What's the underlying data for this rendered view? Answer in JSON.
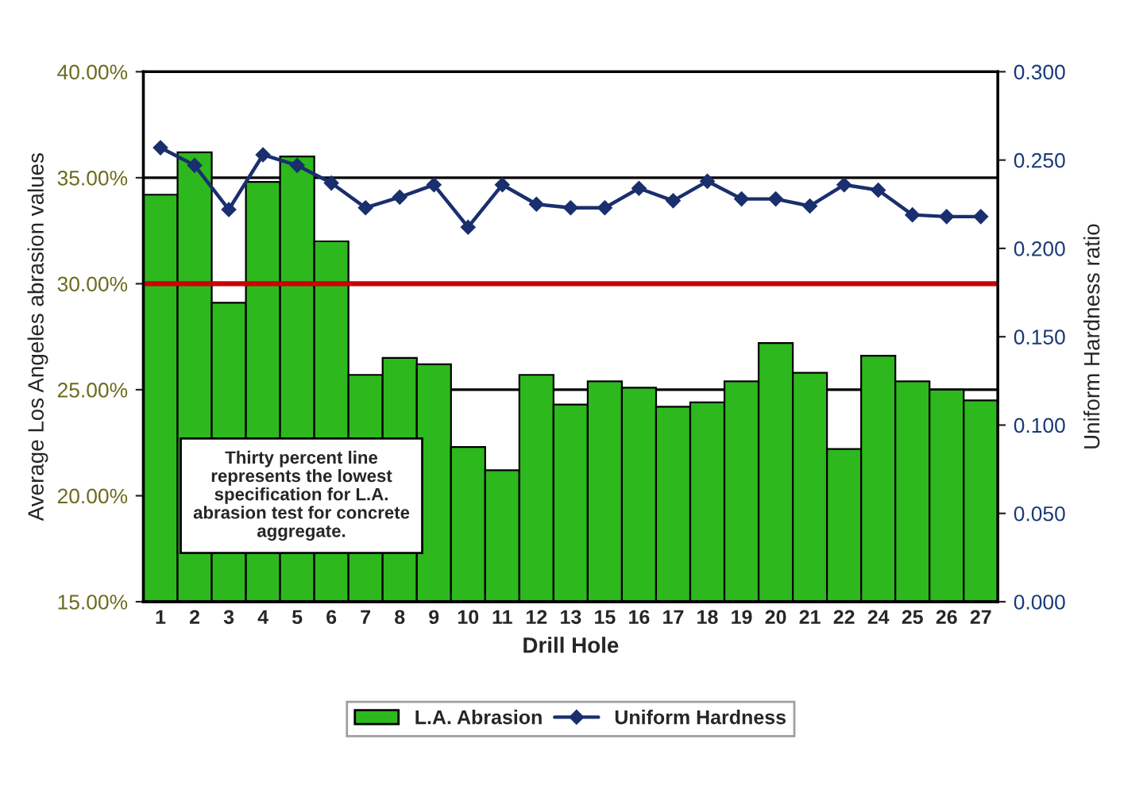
{
  "chart_data": {
    "type": "bar",
    "xlabel": "Drill Hole",
    "ylabel": "Average Los Angeles abrasion values",
    "y2label": "Uniform Hardness ratio",
    "categories": [
      "1",
      "2",
      "3",
      "4",
      "5",
      "6",
      "7",
      "8",
      "9",
      "10",
      "11",
      "12",
      "13",
      "15",
      "16",
      "17",
      "18",
      "19",
      "20",
      "21",
      "22",
      "24",
      "25",
      "26",
      "27"
    ],
    "series": [
      {
        "name": "L.A. Abrasion",
        "color": "#2db81e",
        "values": [
          34.2,
          36.2,
          29.1,
          34.8,
          36.0,
          32.0,
          25.7,
          26.5,
          26.2,
          22.3,
          21.2,
          25.7,
          24.3,
          25.4,
          25.1,
          24.2,
          24.4,
          25.4,
          27.2,
          25.8,
          22.2,
          26.6,
          25.4,
          25.0,
          24.5
        ]
      },
      {
        "name": "Uniform Hardness",
        "type": "line",
        "axis": "y2",
        "color": "#1a2f6e",
        "marker": "diamond",
        "values": [
          0.257,
          0.247,
          0.222,
          0.253,
          0.247,
          0.237,
          0.223,
          0.229,
          0.236,
          0.212,
          0.236,
          0.225,
          0.223,
          0.223,
          0.234,
          0.227,
          0.238,
          0.228,
          0.228,
          0.224,
          0.236,
          0.233,
          0.219,
          0.218,
          0.218
        ]
      }
    ],
    "ylim": [
      15,
      40
    ],
    "yticks": [
      {
        "value": 15,
        "label": "15.00%"
      },
      {
        "value": 20,
        "label": "20.00%"
      },
      {
        "value": 25,
        "label": "25.00%"
      },
      {
        "value": 30,
        "label": "30.00%"
      },
      {
        "value": 35,
        "label": "35.00%"
      },
      {
        "value": 40,
        "label": "40.00%"
      }
    ],
    "y2lim": [
      0,
      0.3
    ],
    "y2ticks": [
      {
        "value": 0,
        "label": "0.000"
      },
      {
        "value": 0.05,
        "label": "0.050"
      },
      {
        "value": 0.1,
        "label": "0.100"
      },
      {
        "value": 0.15,
        "label": "0.150"
      },
      {
        "value": 0.2,
        "label": "0.200"
      },
      {
        "value": 0.25,
        "label": "0.250"
      },
      {
        "value": 0.3,
        "label": "0.300"
      }
    ],
    "ref_lines": [
      {
        "axis": "y",
        "value": 30,
        "color": "#cc0000"
      }
    ],
    "annotations": [
      "Thirty percent line\nrepresents the lowest\nspecification for L.A.\nabrasion test for concrete\naggregate."
    ],
    "grid": "y",
    "legend": "bottom"
  }
}
